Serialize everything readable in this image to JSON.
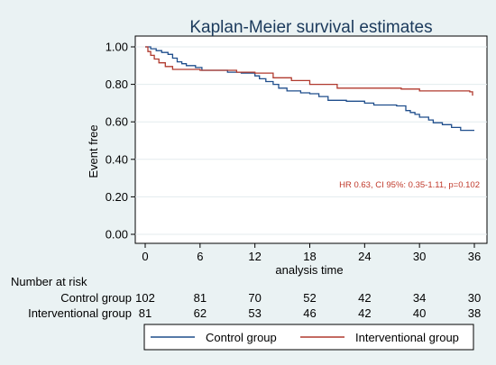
{
  "chart_data": {
    "type": "line",
    "title": "Kaplan-Meier survival estimates",
    "xlabel": "analysis time",
    "ylabel": "Event free",
    "xlim": [
      0,
      36
    ],
    "ylim": [
      0,
      1
    ],
    "x_ticks": [
      0,
      6,
      12,
      18,
      24,
      30,
      36
    ],
    "y_ticks": [
      0.0,
      0.2,
      0.4,
      0.6,
      0.8,
      1.0
    ],
    "y_tick_labels": [
      "0.00",
      "0.20",
      "0.40",
      "0.60",
      "0.80",
      "1.00"
    ],
    "grid": "horizontal",
    "legend_position": "bottom",
    "annotation": "HR 0.63, CI 95%: 0.35-1.11, p=0.102",
    "series": [
      {
        "name": "Control group",
        "color": "#1f4e8c",
        "x": [
          0,
          0.6,
          1.2,
          1.8,
          2.5,
          3.0,
          3.5,
          4.0,
          4.5,
          5.5,
          6.2,
          9.0,
          10.5,
          12.0,
          12.5,
          13.2,
          14.0,
          14.6,
          15.5,
          17.0,
          18.0,
          19.0,
          20.0,
          22.0,
          24.0,
          25.0,
          26.0,
          27.5,
          28.5,
          29.0,
          29.5,
          30.0,
          31.0,
          31.5,
          32.5,
          33.5,
          34.5,
          36.0
        ],
        "y": [
          1.0,
          0.99,
          0.98,
          0.97,
          0.96,
          0.94,
          0.92,
          0.91,
          0.9,
          0.89,
          0.875,
          0.865,
          0.86,
          0.845,
          0.83,
          0.815,
          0.8,
          0.78,
          0.765,
          0.755,
          0.75,
          0.735,
          0.715,
          0.71,
          0.7,
          0.69,
          0.69,
          0.685,
          0.66,
          0.65,
          0.64,
          0.625,
          0.61,
          0.595,
          0.585,
          0.57,
          0.555,
          0.555
        ]
      },
      {
        "name": "Interventional group",
        "color": "#b03a2e",
        "x": [
          0,
          0.3,
          0.6,
          1.0,
          1.5,
          2.2,
          3.0,
          6.0,
          10.0,
          12.0,
          14.0,
          16.0,
          18.0,
          21.0,
          28.0,
          30.0,
          35.5,
          35.8
        ],
        "y": [
          1.0,
          0.975,
          0.955,
          0.935,
          0.915,
          0.895,
          0.88,
          0.875,
          0.865,
          0.86,
          0.835,
          0.82,
          0.8,
          0.78,
          0.775,
          0.765,
          0.76,
          0.74
        ]
      }
    ],
    "risk_table": {
      "title": "Number at risk",
      "times": [
        0,
        6,
        12,
        18,
        24,
        30,
        36
      ],
      "rows": [
        {
          "label": "Control group",
          "values": [
            "102",
            "81",
            "70",
            "52",
            "42",
            "34",
            "30"
          ]
        },
        {
          "label": "Interventional group",
          "values": [
            "81",
            "62",
            "53",
            "46",
            "42",
            "40",
            "38"
          ]
        }
      ]
    }
  }
}
